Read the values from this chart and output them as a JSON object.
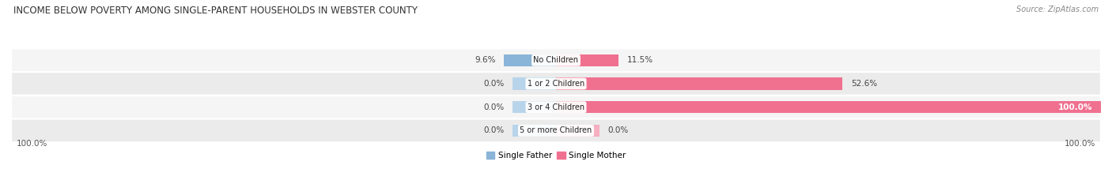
{
  "title": "INCOME BELOW POVERTY AMONG SINGLE-PARENT HOUSEHOLDS IN WEBSTER COUNTY",
  "source": "Source: ZipAtlas.com",
  "categories": [
    "No Children",
    "1 or 2 Children",
    "3 or 4 Children",
    "5 or more Children"
  ],
  "single_father": [
    9.6,
    0.0,
    0.0,
    0.0
  ],
  "single_mother": [
    11.5,
    52.6,
    100.0,
    0.0
  ],
  "father_color": "#8ab4d8",
  "mother_color": "#f07090",
  "mother_color_light": "#f5afc0",
  "father_color_light": "#b8d4ea",
  "row_bg_even": "#ebebeb",
  "row_bg_odd": "#f5f5f5",
  "bar_height": 0.52,
  "figsize": [
    14.06,
    2.33
  ],
  "dpi": 100,
  "axis_label_left": "100.0%",
  "axis_label_right": "100.0%",
  "max_val": 100.0,
  "min_bar_width": 8.0,
  "title_fontsize": 8.5,
  "label_fontsize": 7.5,
  "cat_fontsize": 7.0,
  "legend_fontsize": 7.5,
  "source_fontsize": 7.0
}
